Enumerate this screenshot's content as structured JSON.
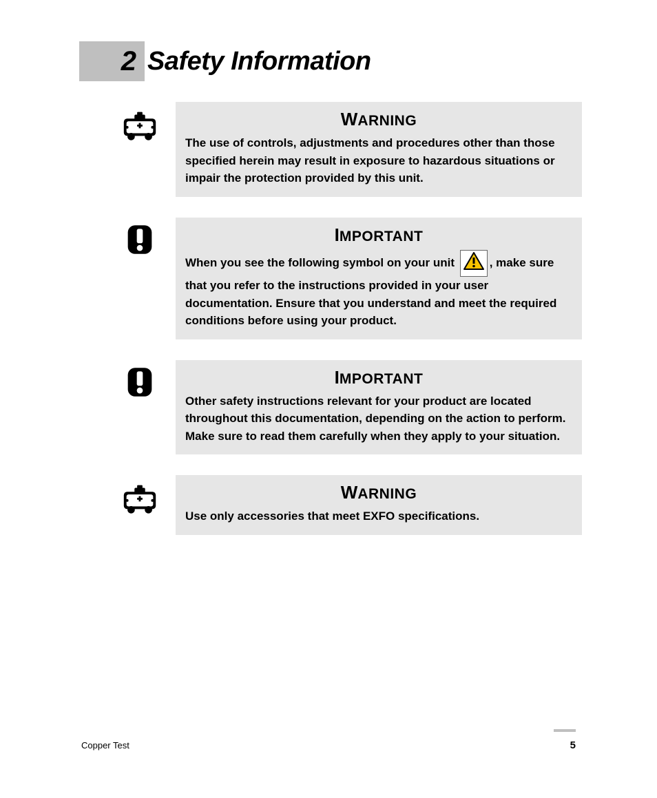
{
  "chapter": {
    "number": "2",
    "title": "Safety Information"
  },
  "blocks": [
    {
      "icon": "ambulance",
      "heading_first": "W",
      "heading_rest": "ARNING",
      "body_pre": "The use of controls, adjustments and procedures other than those specified herein may result in exposure to hazardous situations or impair the protection provided by this unit.",
      "body_post": "",
      "inline_symbol": false
    },
    {
      "icon": "exclaim",
      "heading_first": "I",
      "heading_rest": "MPORTANT",
      "body_pre": "When you see the following symbol on your unit ",
      "body_post": ", make sure that you refer to the instructions provided in your user documentation. Ensure that you understand and meet the required conditions before using your product.",
      "inline_symbol": true
    },
    {
      "icon": "exclaim",
      "heading_first": "I",
      "heading_rest": "MPORTANT",
      "body_pre": "Other safety instructions relevant for your product are located throughout this documentation, depending on the action to perform. Make sure to read them carefully when they apply to your situation.",
      "body_post": "",
      "inline_symbol": false
    },
    {
      "icon": "ambulance",
      "heading_first": "W",
      "heading_rest": "ARNING",
      "body_pre": "Use only accessories that meet EXFO specifications.",
      "body_post": "",
      "inline_symbol": false
    }
  ],
  "footer": {
    "left": "Copper Test",
    "page": "5"
  },
  "colors": {
    "chapter_bg": "#bfbfbf",
    "notice_bg": "#e6e6e6",
    "triangle_fill": "#f6c200",
    "triangle_stroke": "#000000"
  }
}
